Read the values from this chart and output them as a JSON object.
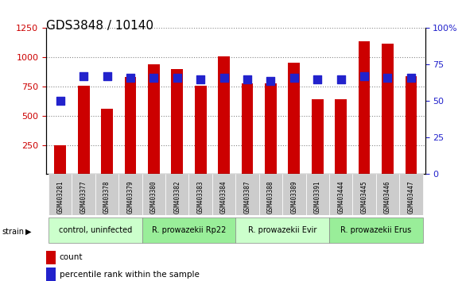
{
  "title": "GDS3848 / 10140",
  "samples": [
    "GSM403281",
    "GSM403377",
    "GSM403378",
    "GSM403379",
    "GSM403380",
    "GSM403382",
    "GSM403383",
    "GSM403384",
    "GSM403387",
    "GSM403388",
    "GSM403389",
    "GSM403391",
    "GSM403444",
    "GSM403445",
    "GSM403446",
    "GSM403447"
  ],
  "counts": [
    250,
    760,
    560,
    830,
    940,
    900,
    760,
    1005,
    780,
    780,
    955,
    640,
    640,
    1135,
    1120,
    840
  ],
  "percentiles": [
    50,
    67,
    67,
    66,
    66,
    66,
    65,
    66,
    65,
    64,
    66,
    65,
    65,
    67,
    66,
    66
  ],
  "bar_color": "#cc0000",
  "dot_color": "#2222cc",
  "ylim_left": [
    0,
    1250
  ],
  "ylim_right": [
    0,
    100
  ],
  "yticks_left": [
    250,
    500,
    750,
    1000,
    1250
  ],
  "yticks_right": [
    0,
    25,
    50,
    75,
    100
  ],
  "groups": [
    {
      "label": "control, uninfected",
      "start": 0,
      "end": 3,
      "color": "#ccffcc"
    },
    {
      "label": "R. prowazekii Rp22",
      "start": 4,
      "end": 7,
      "color": "#99ee99"
    },
    {
      "label": "R. prowazekii Evir",
      "start": 8,
      "end": 11,
      "color": "#ccffcc"
    },
    {
      "label": "R. prowazekii Erus",
      "start": 12,
      "end": 15,
      "color": "#99ee99"
    }
  ],
  "legend_count_label": "count",
  "legend_percentile_label": "percentile rank within the sample",
  "grid_color": "#888888",
  "background_plot": "#ffffff",
  "tick_label_color_left": "#cc0000",
  "tick_label_color_right": "#2222cc",
  "xlabel_color": "#444444",
  "bar_width": 0.5,
  "dot_size": 60
}
